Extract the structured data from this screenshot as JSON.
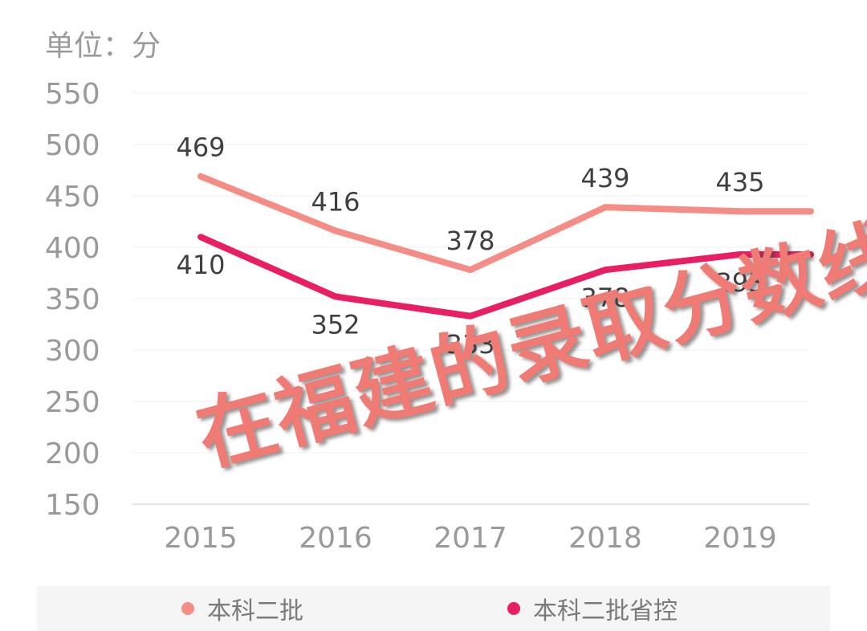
{
  "unit_label": "单位：分",
  "overlay_title": "在福建的录取分数线",
  "colors": {
    "series1": "#f58d86",
    "series2": "#ea1e63",
    "overlay": "#f07a74",
    "axis_text": "#9a9a9a",
    "value_text": "#404040",
    "grid": "#f0f0f0"
  },
  "chart_data": {
    "type": "line",
    "categories": [
      "2015",
      "2016",
      "2017",
      "2018",
      "2019"
    ],
    "ylim": [
      150,
      550
    ],
    "yticks": [
      150,
      200,
      250,
      300,
      350,
      400,
      450,
      500,
      550
    ],
    "ylabel": "单位：分",
    "grid": true,
    "legend_position": "bottom",
    "series": [
      {
        "name": "本科二批",
        "values": [
          469,
          416,
          378,
          439,
          435
        ]
      },
      {
        "name": "本科二批省控",
        "values": [
          410,
          352,
          333,
          378,
          393
        ]
      }
    ]
  }
}
